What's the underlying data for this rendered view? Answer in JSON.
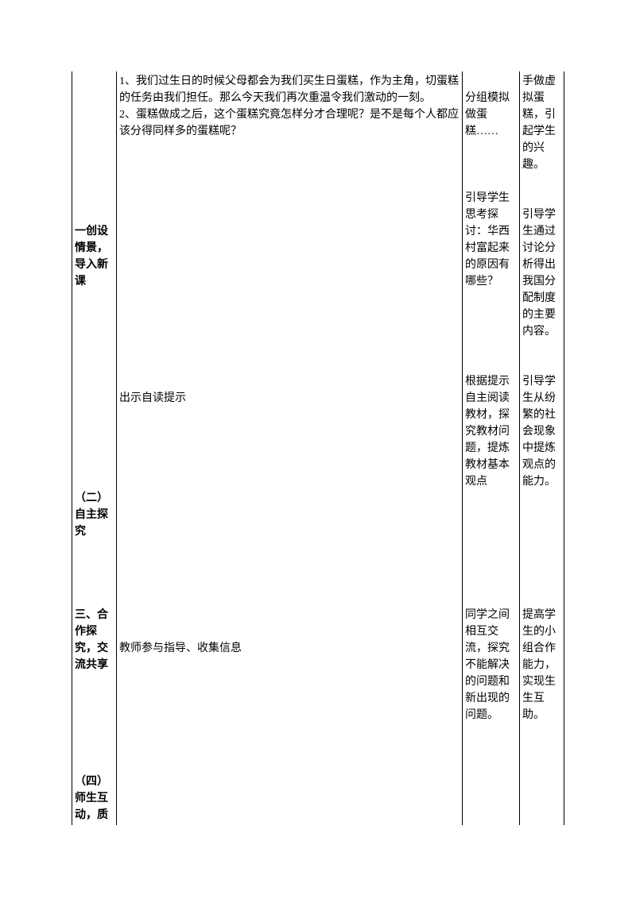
{
  "rows": [
    {
      "c1_html": "<br><br><br><br><br><br><br><br><br><span class='bold'>一创设情景，导入新课</span><br><br><br><br><br><br><br><br><br><br><br><br><br><span class='bold'>（二）自主探究</span><br><br><br><br><br><span class='bold'>三、合作探究，交流共享</span><br><br><br><br><br><br><br><span class='bold'>（四）师生互动，质</span>",
      "c2_html": "1、我们过生日的时候父母都会为我们买生日蛋糕，作为主角，切蛋糕的任务由我们担任。那么今天我们再次重温令我们激动的一刻。<br>2、蛋糕做成之后，这个蛋糕究竟怎样分才合理呢？是不是每个人都应该分得同样多的蛋糕呢？<br><br><br><br><br><br><br><br><br><br><br><br><br><br><br><br>出示自读提示<br><br><br><br><br><br><br><br><br><br><br><br><br><br><br>教师参与指导、收集信息",
      "c3_html": "<br>分组模拟做蛋糕……<br><br><br><br>引导学生思考探讨：华西村富起来的原因有哪些？<br><br><br><br><br><br>根据提示自主阅读教材，探究教材问题，提炼教材基本观点<br><br><br><br><br><br><br><br>同学之间相互交流，探究不能解决的问题和新出现的问题。",
      "c4_html": "手做虚拟蛋糕，引起学生的兴趣。<br><br><br>引导学生通过讨论分析得出我国分配制度的主要内容。<br><br><br>引导学生从纷繁的社会现象中提炼观点的能力。<br><br><br><br><br><br><br><br>提高学生的小组合作能力，实现生生互助。"
    }
  ],
  "style": {
    "border_color": "#000000",
    "font_size": 14,
    "background": "#ffffff"
  }
}
